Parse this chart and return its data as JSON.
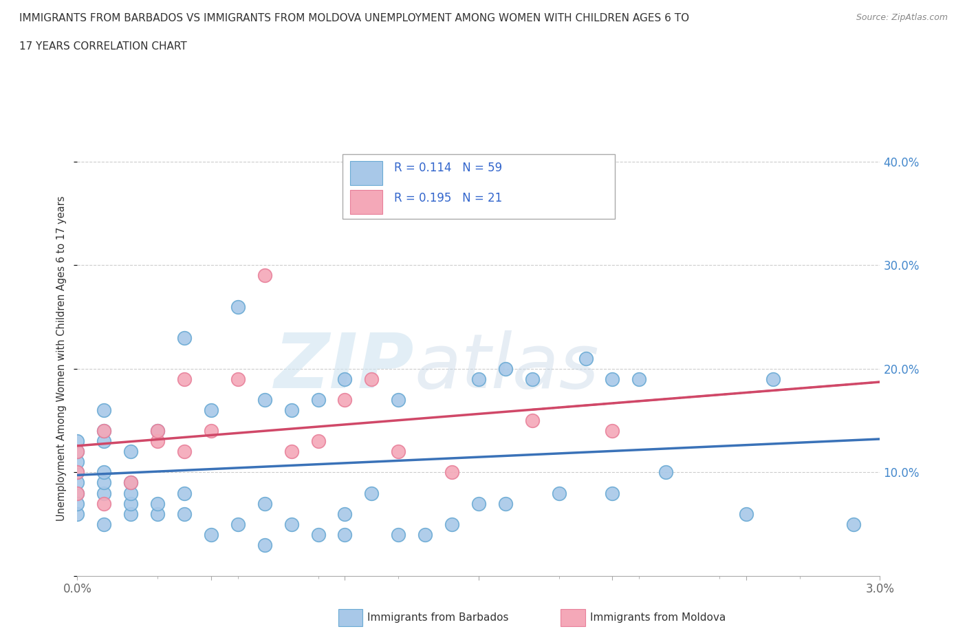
{
  "title_line1": "IMMIGRANTS FROM BARBADOS VS IMMIGRANTS FROM MOLDOVA UNEMPLOYMENT AMONG WOMEN WITH CHILDREN AGES 6 TO",
  "title_line2": "17 YEARS CORRELATION CHART",
  "source": "Source: ZipAtlas.com",
  "ylabel": "Unemployment Among Women with Children Ages 6 to 17 years",
  "xlim": [
    0.0,
    0.03
  ],
  "ylim": [
    0.0,
    0.42
  ],
  "xticks": [
    0.0,
    0.005,
    0.01,
    0.015,
    0.02,
    0.025,
    0.03
  ],
  "xtick_labels": [
    "0.0%",
    "",
    "",
    "",
    "",
    "",
    "3.0%"
  ],
  "yticks": [
    0.0,
    0.1,
    0.2,
    0.3,
    0.4
  ],
  "ytick_labels": [
    "",
    "10.0%",
    "20.0%",
    "30.0%",
    "40.0%"
  ],
  "legend_r_barbados": "0.114",
  "legend_n_barbados": "59",
  "legend_r_moldova": "0.195",
  "legend_n_moldova": "21",
  "barbados_color": "#a8c8e8",
  "moldova_color": "#f4a8b8",
  "barbados_edge_color": "#6aaad4",
  "moldova_edge_color": "#e8809a",
  "barbados_line_color": "#3a72b8",
  "moldova_line_color": "#d04868",
  "grid_color": "#cccccc",
  "barbados_x": [
    0.0,
    0.0,
    0.0,
    0.0,
    0.0,
    0.0,
    0.0,
    0.0,
    0.001,
    0.001,
    0.001,
    0.001,
    0.001,
    0.001,
    0.001,
    0.002,
    0.002,
    0.002,
    0.002,
    0.002,
    0.003,
    0.003,
    0.003,
    0.004,
    0.004,
    0.004,
    0.005,
    0.005,
    0.006,
    0.006,
    0.007,
    0.007,
    0.007,
    0.008,
    0.008,
    0.009,
    0.009,
    0.01,
    0.01,
    0.01,
    0.011,
    0.012,
    0.012,
    0.013,
    0.014,
    0.015,
    0.015,
    0.016,
    0.016,
    0.017,
    0.018,
    0.019,
    0.02,
    0.02,
    0.021,
    0.022,
    0.025,
    0.026,
    0.029
  ],
  "barbados_y": [
    0.08,
    0.09,
    0.1,
    0.11,
    0.12,
    0.13,
    0.06,
    0.07,
    0.05,
    0.08,
    0.09,
    0.1,
    0.13,
    0.14,
    0.16,
    0.06,
    0.07,
    0.08,
    0.09,
    0.12,
    0.06,
    0.07,
    0.14,
    0.06,
    0.08,
    0.23,
    0.04,
    0.16,
    0.05,
    0.26,
    0.03,
    0.07,
    0.17,
    0.05,
    0.16,
    0.04,
    0.17,
    0.04,
    0.06,
    0.19,
    0.08,
    0.04,
    0.17,
    0.04,
    0.05,
    0.07,
    0.19,
    0.07,
    0.2,
    0.19,
    0.08,
    0.21,
    0.19,
    0.08,
    0.19,
    0.1,
    0.06,
    0.19,
    0.05
  ],
  "moldova_x": [
    0.0,
    0.0,
    0.0,
    0.001,
    0.001,
    0.002,
    0.003,
    0.003,
    0.004,
    0.004,
    0.005,
    0.006,
    0.007,
    0.008,
    0.009,
    0.01,
    0.011,
    0.012,
    0.014,
    0.017,
    0.02
  ],
  "moldova_y": [
    0.08,
    0.1,
    0.12,
    0.07,
    0.14,
    0.09,
    0.13,
    0.14,
    0.12,
    0.19,
    0.14,
    0.19,
    0.29,
    0.12,
    0.13,
    0.17,
    0.19,
    0.12,
    0.1,
    0.15,
    0.14
  ]
}
